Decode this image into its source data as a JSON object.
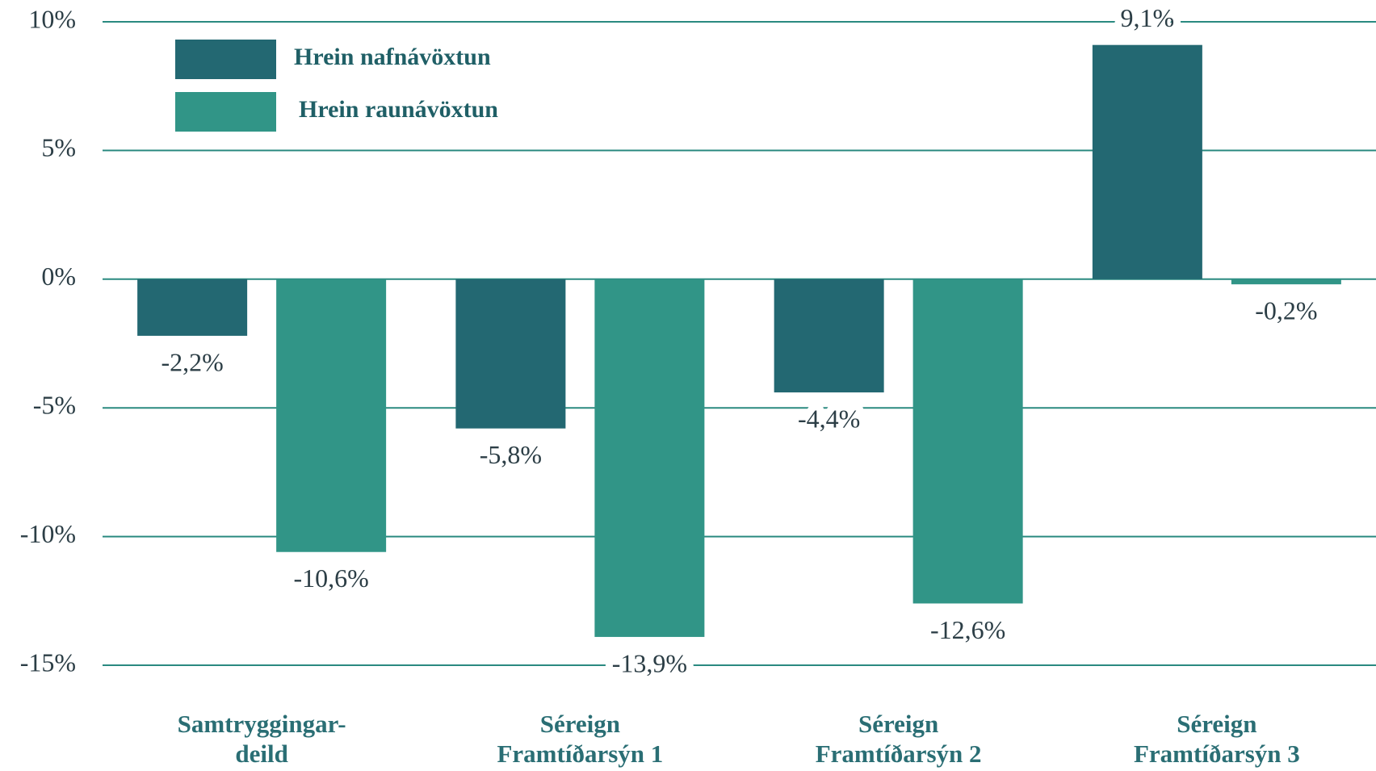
{
  "chart_data": {
    "type": "bar",
    "categories": [
      [
        "Samtryggingar-",
        "deild"
      ],
      [
        "Séreign",
        "Framtíðarsýn 1"
      ],
      [
        "Séreign",
        "Framtíðarsýn 2"
      ],
      [
        "Séreign",
        "Framtíðarsýn 3"
      ]
    ],
    "series": [
      {
        "name": "Hrein nafnávöxtun",
        "color": "#236872",
        "values": [
          -2.2,
          -5.8,
          -4.4,
          9.1
        ],
        "value_labels": [
          "-2,2%",
          "-5,8%",
          "-4,4%",
          "9,1%"
        ]
      },
      {
        "name": "Hrein raunávöxtun",
        "color": "#319587",
        "values": [
          -10.6,
          -13.9,
          -12.6,
          -0.2
        ],
        "value_labels": [
          "-10,6%",
          "-13,9%",
          "-12,6%",
          "-0,2%"
        ]
      }
    ],
    "ylim": [
      -15,
      10
    ],
    "yticks": [
      {
        "value": -15,
        "label": "-15%"
      },
      {
        "value": -10,
        "label": "-10%"
      },
      {
        "value": -5,
        "label": "-5%"
      },
      {
        "value": 0,
        "label": "0%"
      },
      {
        "value": 5,
        "label": "5%"
      },
      {
        "value": 10,
        "label": "10%"
      }
    ],
    "grid": true,
    "legend": "top-left"
  }
}
